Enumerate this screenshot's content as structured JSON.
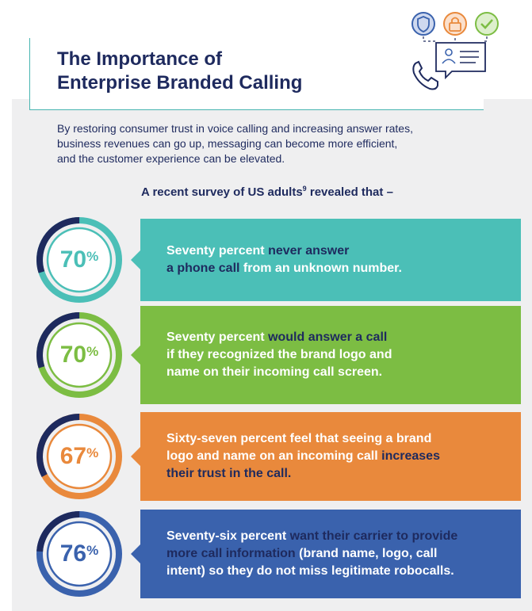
{
  "header": {
    "title": "The Importance of\nEnterprise Branded Calling"
  },
  "intro": {
    "text": "By restoring consumer trust in voice calling and increasing answer rates,\nbusiness revenues can go up, messaging can become more efficient,\nand the customer experience can be elevated."
  },
  "survey": {
    "lead": "A recent survey of US adults",
    "footnote": "9",
    "tail": " revealed that –"
  },
  "icons": {
    "top": [
      "shield-icon",
      "lock-icon",
      "check-icon",
      "chat-profile-icon",
      "phone-icon"
    ]
  },
  "stats": [
    {
      "number": "70",
      "percent_sign": "%",
      "value": 70,
      "color": "#4bbfb7",
      "ring_dark": "#1e2a5e",
      "text_color": "#4bbfb7",
      "segments": [
        {
          "text": "Seventy percent ",
          "hl": false
        },
        {
          "text": "never answer\na phone call",
          "hl": true
        },
        {
          "text": " from an unknown number.",
          "hl": false
        }
      ]
    },
    {
      "number": "70",
      "percent_sign": "%",
      "value": 70,
      "color": "#7cbd43",
      "ring_dark": "#1e2a5e",
      "text_color": "#7cbd43",
      "segments": [
        {
          "text": "Seventy percent ",
          "hl": false
        },
        {
          "text": "would answer a call",
          "hl": true
        },
        {
          "text": "\nif they recognized the brand logo and\nname on their incoming call screen.",
          "hl": false
        }
      ]
    },
    {
      "number": "67",
      "percent_sign": "%",
      "value": 67,
      "color": "#e9893c",
      "ring_dark": "#1e2a5e",
      "text_color": "#e9893c",
      "segments": [
        {
          "text": "Sixty-seven percent feel that seeing a brand\nlogo and name on an incoming call ",
          "hl": false
        },
        {
          "text": "increases\ntheir trust in the call.",
          "hl": true
        }
      ]
    },
    {
      "number": "76",
      "percent_sign": "%",
      "value": 76,
      "color": "#3a62ad",
      "ring_dark": "#1e2a5e",
      "text_color": "#3a62ad",
      "segments": [
        {
          "text": "Seventy-six percent ",
          "hl": false
        },
        {
          "text": "want their carrier to provide\nmore call information",
          "hl": true
        },
        {
          "text": " (brand name, logo, call\nintent) so they do not miss legitimate robocalls.",
          "hl": false
        }
      ]
    }
  ]
}
